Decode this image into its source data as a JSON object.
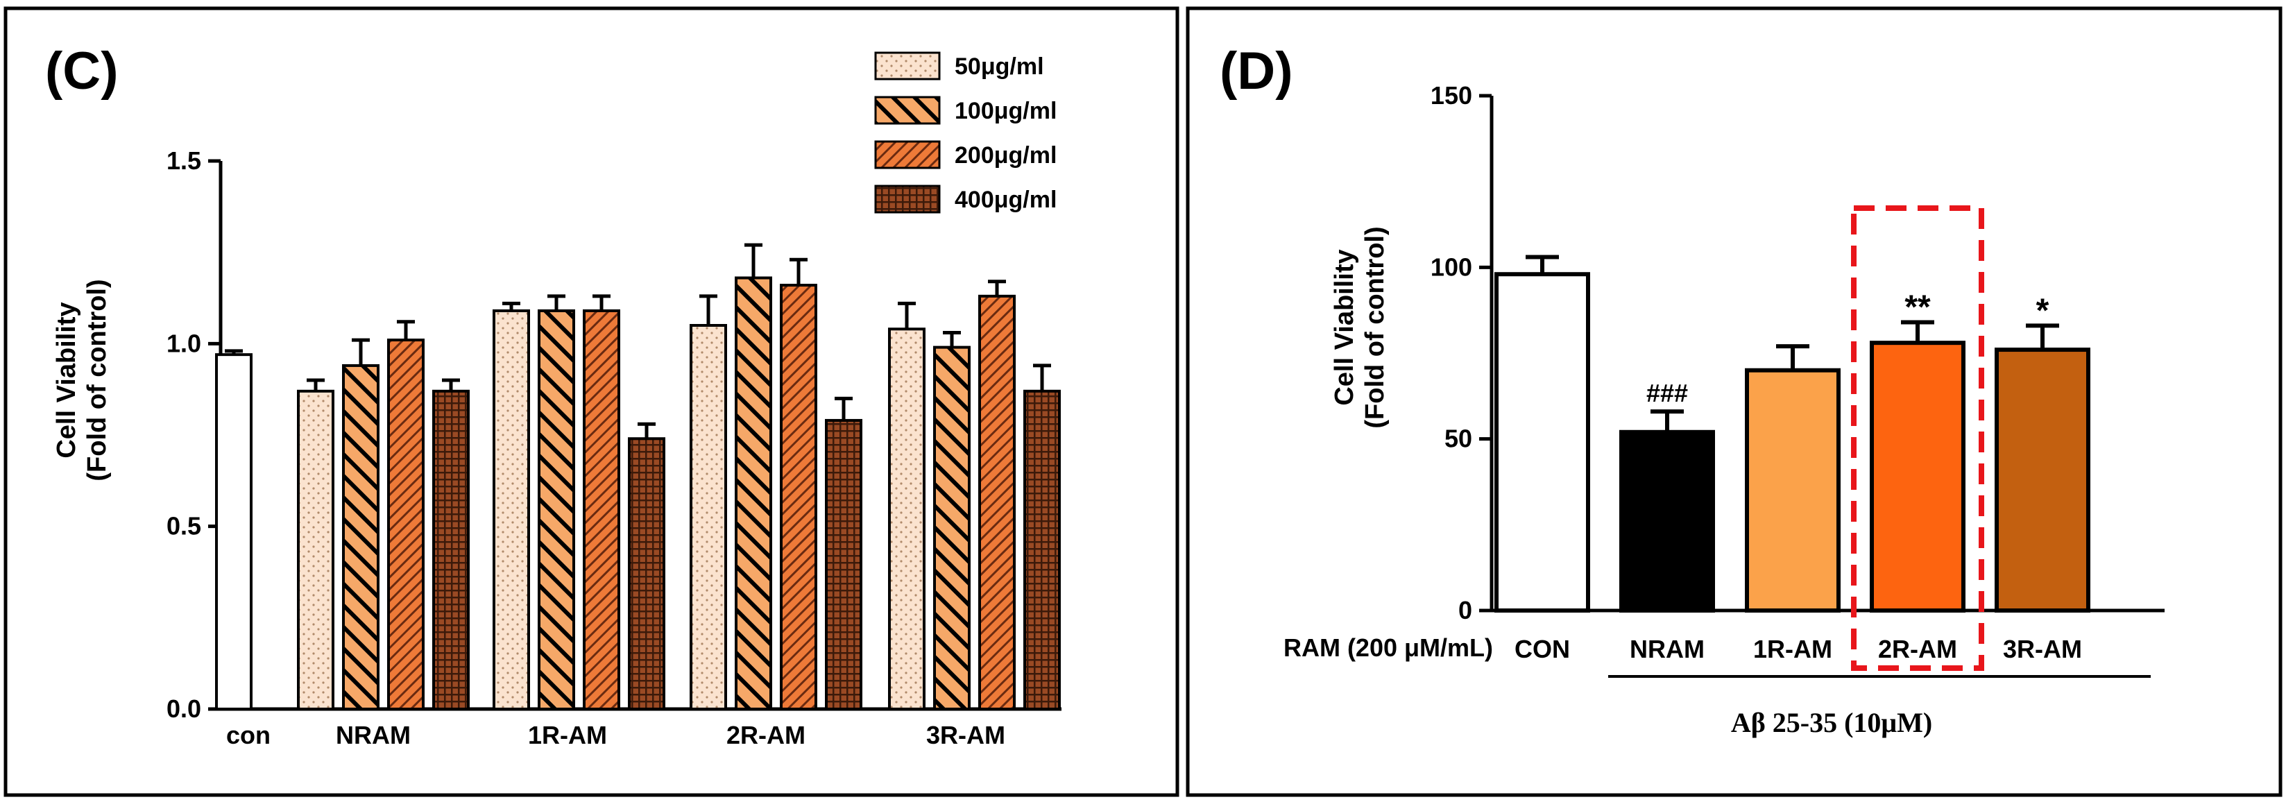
{
  "chart_data": [
    {
      "type": "bar",
      "panel_label": "(C)",
      "categories": [
        "con",
        "NRAM",
        "1R-AM",
        "2R-AM",
        "3R-AM"
      ],
      "series": [
        {
          "name": "50μg/ml",
          "color": "#fbe3cf",
          "pattern": "dots",
          "values": [
            0.97,
            0.87,
            1.09,
            1.05,
            1.04
          ],
          "errors": [
            0.01,
            0.03,
            0.02,
            0.08,
            0.07
          ]
        },
        {
          "name": "100μg/ml",
          "color": "#f6a868",
          "pattern": "diagonal-wide",
          "values": [
            null,
            0.94,
            1.09,
            1.18,
            0.99
          ],
          "errors": [
            null,
            0.07,
            0.04,
            0.09,
            0.04
          ]
        },
        {
          "name": "200μg/ml",
          "color": "#ee7a38",
          "pattern": "diagonal-dense",
          "values": [
            null,
            1.01,
            1.09,
            1.16,
            1.13
          ],
          "errors": [
            null,
            0.05,
            0.04,
            0.07,
            0.04
          ]
        },
        {
          "name": "400μg/ml",
          "color": "#9a4a24",
          "pattern": "crosshatch",
          "values": [
            null,
            0.87,
            0.74,
            0.79,
            0.87
          ],
          "errors": [
            null,
            0.03,
            0.04,
            0.06,
            0.07
          ]
        }
      ],
      "control_color": "#ffffff",
      "xlabel": "",
      "ylabel": [
        "Cell Viability",
        "(Fold of control)"
      ],
      "ylim": [
        0,
        1.5
      ],
      "yticks": [
        "0.0",
        "0.5",
        "1.0",
        "1.5"
      ],
      "grid": false,
      "legend": "top-right"
    },
    {
      "type": "bar",
      "panel_label": "(D)",
      "categories": [
        "CON",
        "NRAM",
        "1R-AM",
        "2R-AM",
        "3R-AM"
      ],
      "values": [
        98,
        52,
        70,
        78,
        76
      ],
      "errors": [
        5,
        6,
        7,
        6,
        7
      ],
      "colors": [
        "#ffffff",
        "#000000",
        "#fba24a",
        "#fd6410",
        "#c36010"
      ],
      "annotations": [
        "",
        "###",
        "",
        "**",
        "*"
      ],
      "ylabel": [
        "Cell Viability",
        "(Fold of control)"
      ],
      "ylim": [
        0,
        150
      ],
      "yticks": [
        "0",
        "50",
        "100",
        "150"
      ],
      "row_label": "RAM (200 μM/mL)",
      "group_label": "Aβ 25-35 (10μM)",
      "highlight": "2R-AM",
      "highlight_color": "#e8161b",
      "grid": false,
      "legend": "none"
    }
  ]
}
